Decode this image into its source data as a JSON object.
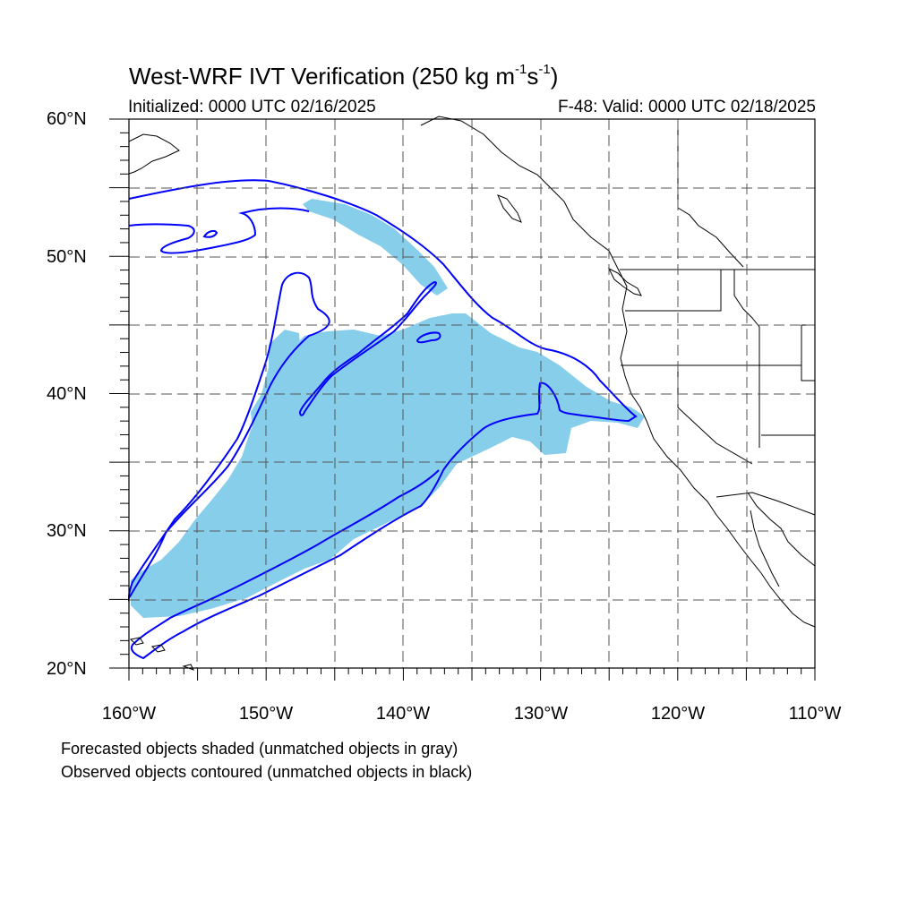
{
  "title": {
    "prefix": "West-WRF IVT Verification (250 kg m",
    "exp1": "-1",
    "middle": "s",
    "exp2": "-1",
    "suffix": ")"
  },
  "initialized_text": "Initialized: 0000 UTC 02/16/2025",
  "valid_text": "F-48: Valid: 0000 UTC 02/18/2025",
  "latitude_labels": [
    "60°N",
    "50°N",
    "40°N",
    "30°N",
    "20°N"
  ],
  "longitude_labels": [
    "160°W",
    "150°W",
    "140°W",
    "130°W",
    "120°W",
    "110°W"
  ],
  "footnotes": [
    "Forecasted objects shaded (unmatched objects in gray)",
    "Observed objects contoured (unmatched objects in black)"
  ],
  "colors": {
    "forecast_fill": "#87CEEB",
    "observed_contour": "#0000FF",
    "coastline": "#000000",
    "gridline": "#555555"
  },
  "map_data": {
    "projection": "lat-lon",
    "lat_range": [
      20,
      60
    ],
    "lon_range": [
      -160,
      -110
    ]
  }
}
